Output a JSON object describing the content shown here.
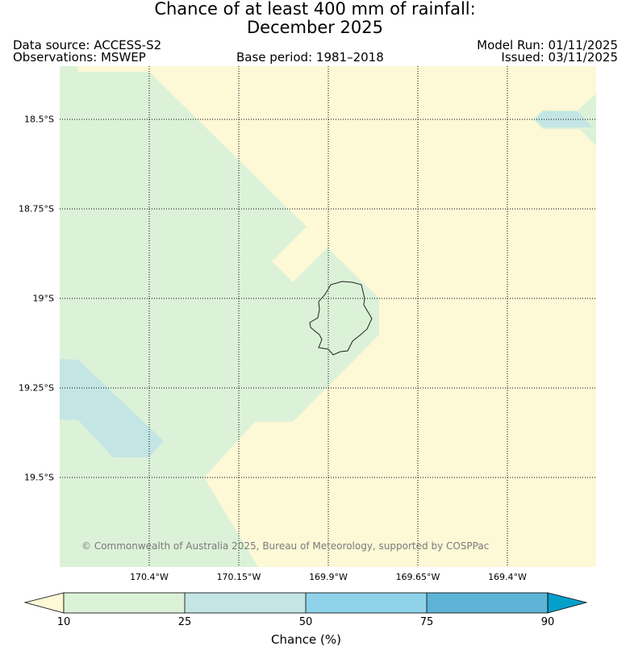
{
  "title_line1": "Chance of at least 400 mm of rainfall:",
  "title_line2": "December 2025",
  "data_source": "Data source: ACCESS-S2",
  "observations": "Observations: MSWEP",
  "base_period": "Base period: 1981–2018",
  "model_run": "Model Run: 01/11/2025",
  "issued": "Issued: 03/11/2025",
  "copyright": "© Commonwealth of Australia 2025, Bureau of Meteorology, supported by COSPPac",
  "latitude_labels": [
    "18.5°S",
    "18.75°S",
    "19°S",
    "19.25°S",
    "19.5°S"
  ],
  "longitude_labels": [
    "170.4°W",
    "170.15°W",
    "169.9°W",
    "169.65°W",
    "169.4°W"
  ],
  "colorbar": {
    "label": "Chance (%)",
    "ticks": [
      "10",
      "25",
      "50",
      "75",
      "90"
    ],
    "colors": [
      "#fdf8d6",
      "#dcf2d8",
      "#c3e5e3",
      "#8fd3eb",
      "#5db4d7",
      "#069fca"
    ]
  },
  "legend_colors": {
    "under_10": "#fdf8d6",
    "10_25": "#dcf2d8",
    "25_50": "#c3e5e3"
  }
}
